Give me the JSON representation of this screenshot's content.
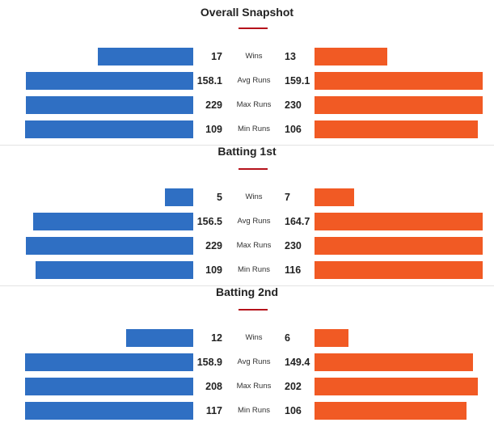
{
  "colors": {
    "team1": "#2f6fc3",
    "team2": "#f15a24",
    "accent": "#b5121b"
  },
  "chart_data": [
    {
      "type": "bar",
      "title": "Overall Snapshot",
      "categories": [
        "Wins",
        "Avg Runs",
        "Max Runs",
        "Min Runs"
      ],
      "series": [
        {
          "values": [
            "17",
            "158.1",
            "229",
            "109"
          ]
        },
        {
          "values": [
            "13",
            "159.1",
            "230",
            "106"
          ]
        }
      ]
    },
    {
      "type": "bar",
      "title": "Batting 1st",
      "categories": [
        "Wins",
        "Avg Runs",
        "Max Runs",
        "Min Runs"
      ],
      "series": [
        {
          "values": [
            "5",
            "156.5",
            "229",
            "109"
          ]
        },
        {
          "values": [
            "7",
            "164.7",
            "230",
            "116"
          ]
        }
      ]
    },
    {
      "type": "bar",
      "title": "Batting 2nd",
      "categories": [
        "Wins",
        "Avg Runs",
        "Max Runs",
        "Min Runs"
      ],
      "series": [
        {
          "values": [
            "12",
            "158.9",
            "208",
            "117"
          ]
        },
        {
          "values": [
            "6",
            "149.4",
            "202",
            "106"
          ]
        }
      ]
    }
  ]
}
